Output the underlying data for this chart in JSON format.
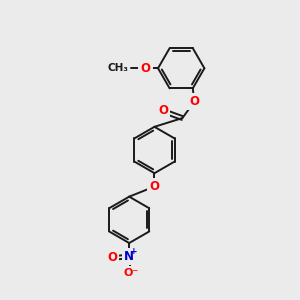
{
  "background_color": "#ebebeb",
  "bond_color": "#1a1a1a",
  "bond_width": 1.4,
  "atom_colors": {
    "O": "#ff0000",
    "N": "#0000cc",
    "C": "#1a1a1a"
  },
  "font_size_atom": 8.5,
  "figsize": [
    3.0,
    3.0
  ],
  "dpi": 100
}
